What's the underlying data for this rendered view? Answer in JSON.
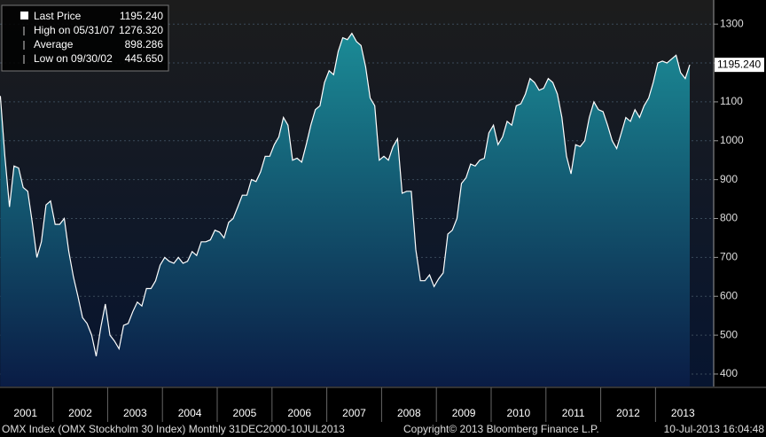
{
  "chart_data": {
    "type": "area",
    "series": [
      {
        "name": "Last Price",
        "color": "#ffffff",
        "fill_top": "#1b8b96",
        "fill_bottom": "#0a1c45",
        "values": [
          1115,
          960,
          830,
          935,
          930,
          880,
          870,
          790,
          700,
          740,
          835,
          845,
          785,
          785,
          800,
          715,
          650,
          600,
          545,
          530,
          500,
          445.65,
          520,
          580,
          500,
          485,
          465,
          525,
          530,
          560,
          585,
          575,
          620,
          620,
          640,
          680,
          700,
          690,
          685,
          700,
          685,
          690,
          715,
          705,
          740,
          740,
          745,
          770,
          765,
          750,
          790,
          800,
          830,
          860,
          860,
          900,
          895,
          920,
          960,
          960,
          990,
          1010,
          1060,
          1040,
          950,
          955,
          945,
          990,
          1040,
          1080,
          1090,
          1150,
          1180,
          1170,
          1230,
          1265,
          1260,
          1276.32,
          1255,
          1245,
          1190,
          1110,
          1090,
          950,
          960,
          950,
          985,
          1005,
          865,
          870,
          870,
          720,
          640,
          640,
          655,
          625,
          645,
          660,
          760,
          770,
          800,
          890,
          905,
          940,
          935,
          950,
          955,
          1020,
          1040,
          990,
          1010,
          1050,
          1040,
          1090,
          1095,
          1120,
          1160,
          1150,
          1130,
          1135,
          1160,
          1150,
          1120,
          1060,
          960,
          915,
          990,
          985,
          1000,
          1060,
          1100,
          1080,
          1075,
          1040,
          1000,
          980,
          1020,
          1060,
          1050,
          1080,
          1060,
          1090,
          1110,
          1150,
          1200,
          1205,
          1200,
          1210,
          1220,
          1175,
          1160,
          1195.24
        ]
      }
    ],
    "categories": [
      null,
      "2001",
      null,
      null,
      null,
      null,
      null,
      null,
      null,
      null,
      null,
      null,
      null,
      "2002",
      null,
      null,
      null,
      null,
      null,
      null,
      null,
      null,
      null,
      null,
      null,
      "2003",
      null,
      null,
      null,
      null,
      null,
      null,
      null,
      null,
      null,
      null,
      null,
      "2004",
      null,
      null,
      null,
      null,
      null,
      null,
      null,
      null,
      null,
      null,
      null,
      "2005",
      null,
      null,
      null,
      null,
      null,
      null,
      null,
      null,
      null,
      null,
      null,
      "2006",
      null,
      null,
      null,
      null,
      null,
      null,
      null,
      null,
      null,
      null,
      null,
      "2007",
      null,
      null,
      null,
      null,
      null,
      null,
      null,
      null,
      null,
      null,
      null,
      "2008",
      null,
      null,
      null,
      null,
      null,
      null,
      null,
      null,
      null,
      null,
      null,
      "2009",
      null,
      null,
      null,
      null,
      null,
      null,
      null,
      null,
      null,
      null,
      null,
      "2010",
      null,
      null,
      null,
      null,
      null,
      null,
      null,
      null,
      null,
      null,
      null,
      "2011",
      null,
      null,
      null,
      null,
      null,
      null,
      null,
      null,
      null,
      null,
      null,
      "2012",
      null,
      null,
      null,
      null,
      null,
      null,
      null,
      null,
      null,
      null,
      null,
      "2013",
      null,
      null,
      null,
      null,
      null,
      null
    ],
    "ylim": [
      368,
      1362
    ],
    "yticks": [
      400,
      500,
      600,
      700,
      800,
      900,
      1000,
      1100,
      1200,
      1300
    ],
    "grid": true,
    "last_label": "1195.240",
    "stats": [
      {
        "label": "High on 05/31/07",
        "value": "1276.320"
      },
      {
        "label": "Average",
        "value": "898.286"
      },
      {
        "label": "Low on 09/30/02",
        "value": "445.650"
      }
    ],
    "footer": {
      "left": "OMX Index (OMX Stockholm 30 Index)  Monthly 31DEC2000-10JUL2013",
      "center": "Copyright© 2013 Bloomberg Finance L.P.",
      "right": "10-Jul-2013 16:04:48"
    }
  }
}
